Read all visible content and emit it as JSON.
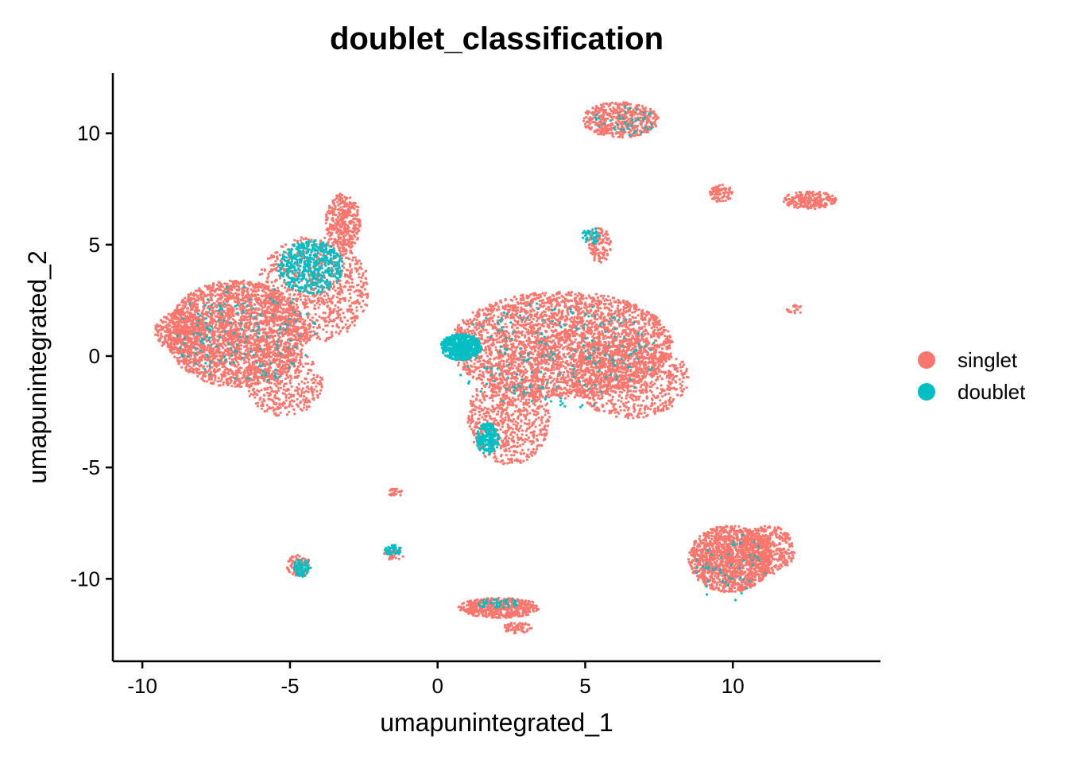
{
  "chart_data": {
    "type": "scatter",
    "title": "doublet_classification",
    "xlabel": "umapunintegrated_1",
    "ylabel": "umapunintegrated_2",
    "xlim": [
      -11,
      15
    ],
    "ylim": [
      -13.7,
      12.7
    ],
    "x_ticks": [
      -10,
      -5,
      0,
      5,
      10
    ],
    "y_ticks": [
      -10,
      -5,
      0,
      5,
      10
    ],
    "x_tick_labels": [
      "-10",
      "-5",
      "0",
      "5",
      "10"
    ],
    "y_tick_labels": [
      "-10",
      "-5",
      "0",
      "5",
      "10"
    ],
    "grid": false,
    "legend_position": "right",
    "series": [
      {
        "name": "singlet",
        "color": "#F8766D",
        "clusters": [
          {
            "cx": -6.8,
            "cy": 1.0,
            "rx": 2.4,
            "ry": 2.4,
            "n": 2600
          },
          {
            "cx": -4.2,
            "cy": 3.0,
            "rx": 1.9,
            "ry": 2.4,
            "n": 900
          },
          {
            "cx": -3.2,
            "cy": 6.0,
            "rx": 0.6,
            "ry": 1.3,
            "n": 350
          },
          {
            "cx": -5.2,
            "cy": -1.2,
            "rx": 1.3,
            "ry": 1.5,
            "n": 400
          },
          {
            "cx": -8.7,
            "cy": 1.1,
            "rx": 0.9,
            "ry": 0.9,
            "n": 300
          },
          {
            "cx": 4.2,
            "cy": 0.5,
            "rx": 3.8,
            "ry": 2.4,
            "n": 3200
          },
          {
            "cx": 2.4,
            "cy": -2.8,
            "rx": 1.4,
            "ry": 2.1,
            "n": 700
          },
          {
            "cx": 6.5,
            "cy": -1.0,
            "rx": 2.0,
            "ry": 1.8,
            "n": 800
          },
          {
            "cx": 5.5,
            "cy": 5.0,
            "rx": 0.4,
            "ry": 0.8,
            "n": 120
          },
          {
            "cx": 6.2,
            "cy": 10.6,
            "rx": 1.3,
            "ry": 0.8,
            "n": 500
          },
          {
            "cx": 9.9,
            "cy": -9.1,
            "rx": 1.4,
            "ry": 1.5,
            "n": 1400
          },
          {
            "cx": 11.2,
            "cy": -8.7,
            "rx": 0.9,
            "ry": 1.1,
            "n": 400
          },
          {
            "cx": 2.1,
            "cy": -11.3,
            "rx": 1.4,
            "ry": 0.45,
            "n": 500
          },
          {
            "cx": 2.7,
            "cy": -12.2,
            "rx": 0.5,
            "ry": 0.25,
            "n": 60
          },
          {
            "cx": 12.6,
            "cy": 7.0,
            "rx": 0.9,
            "ry": 0.4,
            "n": 220
          },
          {
            "cx": 9.6,
            "cy": 7.3,
            "rx": 0.4,
            "ry": 0.4,
            "n": 80
          },
          {
            "cx": -4.7,
            "cy": -9.4,
            "rx": 0.4,
            "ry": 0.5,
            "n": 90
          },
          {
            "cx": -1.5,
            "cy": -8.9,
            "rx": 0.35,
            "ry": 0.3,
            "n": 40
          },
          {
            "cx": -1.4,
            "cy": -6.1,
            "rx": 0.3,
            "ry": 0.2,
            "n": 25
          },
          {
            "cx": 12.1,
            "cy": 2.1,
            "rx": 0.3,
            "ry": 0.2,
            "n": 20
          }
        ]
      },
      {
        "name": "doublet",
        "color": "#00BFC4",
        "clusters": [
          {
            "cx": 0.8,
            "cy": 0.4,
            "rx": 0.7,
            "ry": 0.6,
            "n": 500
          },
          {
            "cx": 1.7,
            "cy": -3.7,
            "rx": 0.4,
            "ry": 0.7,
            "n": 220
          },
          {
            "cx": -4.3,
            "cy": 4.0,
            "rx": 1.1,
            "ry": 1.2,
            "n": 500
          },
          {
            "cx": -4.6,
            "cy": -9.5,
            "rx": 0.3,
            "ry": 0.4,
            "n": 70
          },
          {
            "cx": -1.5,
            "cy": -8.7,
            "rx": 0.3,
            "ry": 0.3,
            "n": 40
          },
          {
            "cx": 5.2,
            "cy": 5.4,
            "rx": 0.3,
            "ry": 0.4,
            "n": 40
          },
          {
            "cx": 2.0,
            "cy": -11.1,
            "rx": 0.8,
            "ry": 0.2,
            "n": 40
          },
          {
            "cx": -6.5,
            "cy": 1.0,
            "rx": 2.4,
            "ry": 2.2,
            "n": 160
          },
          {
            "cx": 4.0,
            "cy": 0.0,
            "rx": 3.5,
            "ry": 2.4,
            "n": 200
          },
          {
            "cx": 6.3,
            "cy": 10.5,
            "rx": 1.1,
            "ry": 0.7,
            "n": 40
          },
          {
            "cx": 10.0,
            "cy": -9.5,
            "rx": 1.5,
            "ry": 1.5,
            "n": 50
          }
        ]
      }
    ]
  }
}
